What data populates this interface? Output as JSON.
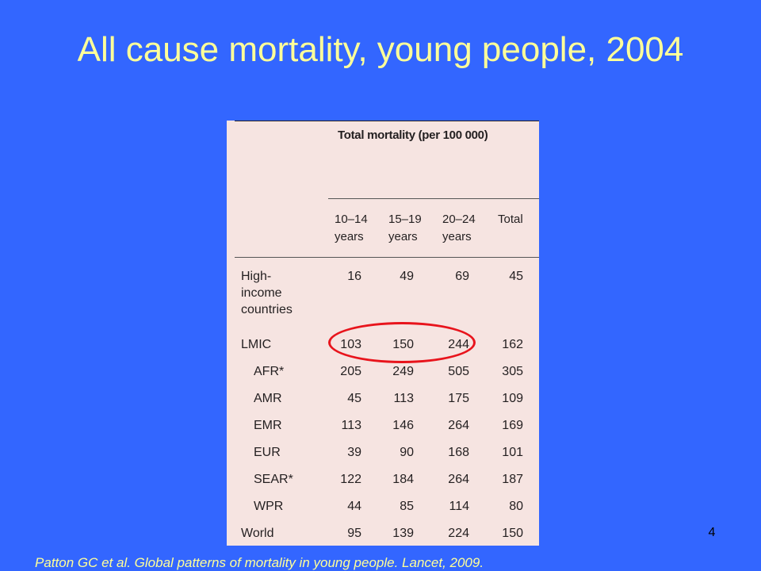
{
  "title": "All cause mortality, young people, 2004",
  "table": {
    "group_header": "Total mortality (per 100 000)",
    "columns": [
      "10–14\nyears",
      "15–19\nyears",
      "20–24\nyears",
      "Total"
    ],
    "rows": [
      {
        "label": "High-\nincome\ncountries",
        "values": [
          "16",
          "49",
          "69",
          "45"
        ]
      },
      {
        "label": "LMIC",
        "values": [
          "103",
          "150",
          "244",
          "162"
        ]
      },
      {
        "label": "AFR*",
        "values": [
          "205",
          "249",
          "505",
          "305"
        ]
      },
      {
        "label": "AMR",
        "values": [
          "45",
          "113",
          "175",
          "109"
        ]
      },
      {
        "label": "EMR",
        "values": [
          "113",
          "146",
          "264",
          "169"
        ]
      },
      {
        "label": "EUR",
        "values": [
          "39",
          "90",
          "168",
          "101"
        ]
      },
      {
        "label": "SEAR*",
        "values": [
          "122",
          "184",
          "264",
          "187"
        ]
      },
      {
        "label": "WPR",
        "values": [
          "44",
          "85",
          "114",
          "80"
        ]
      },
      {
        "label": "World",
        "values": [
          "95",
          "139",
          "224",
          "150"
        ]
      }
    ],
    "highlight_color": "#e8141c"
  },
  "page_number": "4",
  "citation": "Patton GC et al. Global patterns of mortality in young people. Lancet, 2009."
}
